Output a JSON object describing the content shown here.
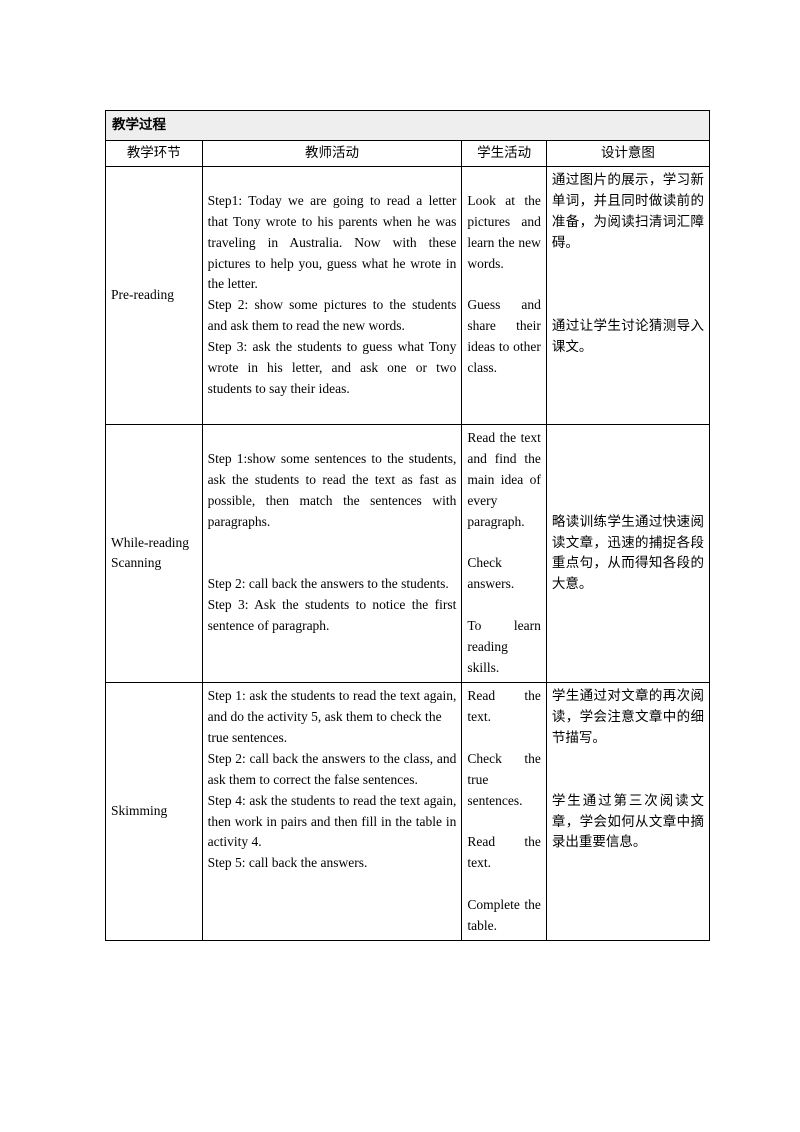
{
  "table": {
    "border_color": "#000000",
    "header_bg": "#eeeeee",
    "font_size": 13.5,
    "line_height": 1.55,
    "col_widths_pct": [
      16,
      43,
      14,
      27
    ]
  },
  "section_title": "教学过程",
  "columns": {
    "c1": "教学环节",
    "c2": "教师活动",
    "c3": "学生活动",
    "c4": "设计意图"
  },
  "rows": [
    {
      "stage": "Pre-reading",
      "teacher": "Step1: Today we are going to read a letter that Tony wrote to his parents when he was traveling in Australia. Now with these pictures to help you, guess what he wrote in the letter.\nStep 2: show some pictures to the students and ask them to read the new words.\nStep 3: ask the students to guess what Tony wrote in his letter, and ask one or two students to say their ideas.",
      "student_a": "Look at the pictures and learn the new words.",
      "student_b": "Guess and share their ideas to other class.",
      "intent_a": "通过图片的展示，学习新单词，并且同时做读前的准备，为阅读扫清词汇障碍。",
      "intent_b": "通过让学生讨论猜测导入课文。"
    },
    {
      "stage": "While-reading Scanning",
      "teacher_a": "Step 1:show some sentences to the students, ask the students to read the text as fast as possible, then match the sentences with paragraphs.",
      "teacher_b": "Step 2: call back the answers to the students.\nStep 3: Ask the students to notice the first sentence of paragraph.",
      "student_a": "Read the text and find the main idea of every paragraph.",
      "student_b": "Check answers.",
      "student_c": "To learn reading skills.",
      "intent": "略读训练学生通过快速阅读文章，迅速的捕捉各段重点句，从而得知各段的大意。"
    },
    {
      "stage": "Skimming",
      "teacher": "Step 1: ask the students to read the text again, and do the activity 5, ask them to check the\ntrue sentences.\nStep 2: call back the answers to the class, and ask them to correct the false sentences.\nStep 4: ask the students to read the text again, then work in pairs and then fill in the table in activity 4.\nStep 5: call back the answers.",
      "student_a": "Read the text.",
      "student_b": "Check the true sentences.",
      "student_c": "Read the text.",
      "student_d": "Complete the table.",
      "intent_a": "学生通过对文章的再次阅读，学会注意文章中的细节描写。",
      "intent_b": "学生通过第三次阅读文章，学会如何从文章中摘录出重要信息。"
    }
  ]
}
